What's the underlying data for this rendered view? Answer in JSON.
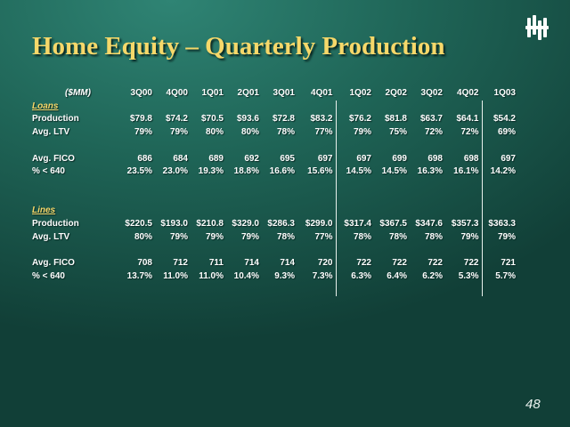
{
  "slide": {
    "title": "Home Equity – Quarterly Production",
    "page_number": "48",
    "logo": "company-logo-icon"
  },
  "table": {
    "unit": "($MM)",
    "quarters": [
      "3Q00",
      "4Q00",
      "1Q01",
      "2Q01",
      "3Q01",
      "4Q01",
      "1Q02",
      "2Q02",
      "3Q02",
      "4Q02",
      "1Q03"
    ],
    "loans": {
      "heading": "Loans",
      "rows": [
        {
          "label": "Production",
          "values": [
            "$79.8",
            "$74.2",
            "$70.5",
            "$93.6",
            "$72.8",
            "$83.2",
            "$76.2",
            "$81.8",
            "$63.7",
            "$64.1",
            "$54.2"
          ]
        },
        {
          "label": "Avg. LTV",
          "values": [
            "79%",
            "79%",
            "80%",
            "80%",
            "78%",
            "77%",
            "79%",
            "75%",
            "72%",
            "72%",
            "69%"
          ]
        },
        {
          "label": "Avg. FICO",
          "values": [
            "686",
            "684",
            "689",
            "692",
            "695",
            "697",
            "697",
            "699",
            "698",
            "698",
            "697"
          ]
        },
        {
          "label": "% < 640",
          "values": [
            "23.5%",
            "23.0%",
            "19.3%",
            "18.8%",
            "16.6%",
            "15.6%",
            "14.5%",
            "14.5%",
            "16.3%",
            "16.1%",
            "14.2%"
          ]
        }
      ]
    },
    "lines": {
      "heading": "Lines",
      "rows": [
        {
          "label": "Production",
          "values": [
            "$220.5",
            "$193.0",
            "$210.8",
            "$329.0",
            "$286.3",
            "$299.0",
            "$317.4",
            "$367.5",
            "$347.6",
            "$357.3",
            "$363.3"
          ]
        },
        {
          "label": "Avg. LTV",
          "values": [
            "80%",
            "79%",
            "79%",
            "79%",
            "78%",
            "77%",
            "78%",
            "78%",
            "78%",
            "79%",
            "79%"
          ]
        },
        {
          "label": "Avg. FICO",
          "values": [
            "708",
            "712",
            "711",
            "714",
            "714",
            "720",
            "722",
            "722",
            "722",
            "722",
            "721"
          ]
        },
        {
          "label": "% < 640",
          "values": [
            "13.7%",
            "11.0%",
            "11.0%",
            "10.4%",
            "9.3%",
            "7.3%",
            "6.3%",
            "6.4%",
            "6.2%",
            "5.3%",
            "5.7%"
          ]
        }
      ]
    }
  }
}
